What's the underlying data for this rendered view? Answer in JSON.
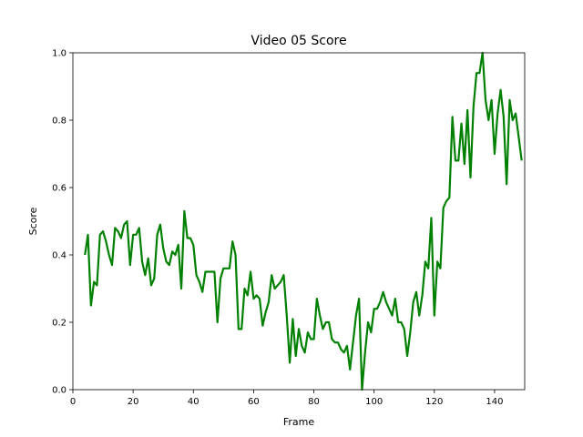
{
  "chart_data": {
    "type": "line",
    "title": "Video 05 Score",
    "xlabel": "Frame",
    "ylabel": "Score",
    "xlim": [
      0,
      150
    ],
    "ylim": [
      0.0,
      1.0
    ],
    "xticks": [
      0,
      20,
      40,
      60,
      80,
      100,
      120,
      140
    ],
    "yticks": [
      0.0,
      0.2,
      0.4,
      0.6,
      0.8,
      1.0
    ],
    "xtick_labels": [
      "0",
      "20",
      "40",
      "60",
      "80",
      "100",
      "120",
      "140"
    ],
    "ytick_labels": [
      "0.0",
      "0.2",
      "0.4",
      "0.6",
      "0.8",
      "1.0"
    ],
    "grid": false,
    "series": [
      {
        "color": "#008000",
        "x": [
          4,
          5,
          6,
          7,
          8,
          9,
          10,
          11,
          12,
          13,
          14,
          15,
          16,
          17,
          18,
          19,
          20,
          21,
          22,
          23,
          24,
          25,
          26,
          27,
          28,
          29,
          30,
          31,
          32,
          33,
          34,
          35,
          36,
          37,
          38,
          39,
          40,
          41,
          42,
          43,
          44,
          45,
          46,
          47,
          48,
          49,
          50,
          51,
          52,
          53,
          54,
          55,
          56,
          57,
          58,
          59,
          60,
          61,
          62,
          63,
          64,
          65,
          66,
          67,
          68,
          69,
          70,
          71,
          72,
          73,
          74,
          75,
          76,
          77,
          78,
          79,
          80,
          81,
          82,
          83,
          84,
          85,
          86,
          87,
          88,
          89,
          90,
          91,
          92,
          93,
          94,
          95,
          96,
          97,
          98,
          99,
          100,
          101,
          102,
          103,
          104,
          105,
          106,
          107,
          108,
          109,
          110,
          111,
          112,
          113,
          114,
          115,
          116,
          117,
          118,
          119,
          120,
          121,
          122,
          123,
          124,
          125,
          126,
          127,
          128,
          129,
          130,
          131,
          132,
          133,
          134,
          135,
          136,
          137,
          138,
          139,
          140,
          141,
          142,
          143,
          144,
          145,
          146,
          147,
          148,
          149
        ],
        "y": [
          0.4,
          0.46,
          0.25,
          0.32,
          0.31,
          0.46,
          0.47,
          0.44,
          0.4,
          0.37,
          0.48,
          0.47,
          0.45,
          0.49,
          0.5,
          0.37,
          0.46,
          0.46,
          0.48,
          0.38,
          0.34,
          0.39,
          0.31,
          0.33,
          0.46,
          0.49,
          0.42,
          0.38,
          0.37,
          0.41,
          0.4,
          0.43,
          0.3,
          0.53,
          0.45,
          0.45,
          0.43,
          0.34,
          0.32,
          0.29,
          0.35,
          0.35,
          0.35,
          0.35,
          0.2,
          0.33,
          0.36,
          0.36,
          0.36,
          0.44,
          0.4,
          0.18,
          0.18,
          0.3,
          0.28,
          0.35,
          0.27,
          0.28,
          0.27,
          0.19,
          0.23,
          0.26,
          0.34,
          0.3,
          0.31,
          0.32,
          0.34,
          0.22,
          0.08,
          0.21,
          0.1,
          0.18,
          0.13,
          0.11,
          0.17,
          0.15,
          0.15,
          0.27,
          0.22,
          0.18,
          0.2,
          0.2,
          0.15,
          0.14,
          0.14,
          0.12,
          0.11,
          0.13,
          0.06,
          0.14,
          0.22,
          0.27,
          0.0,
          0.11,
          0.2,
          0.17,
          0.24,
          0.24,
          0.26,
          0.29,
          0.26,
          0.24,
          0.22,
          0.27,
          0.2,
          0.2,
          0.18,
          0.1,
          0.17,
          0.26,
          0.29,
          0.22,
          0.28,
          0.38,
          0.36,
          0.51,
          0.22,
          0.38,
          0.36,
          0.54,
          0.56,
          0.57,
          0.81,
          0.68,
          0.68,
          0.79,
          0.67,
          0.83,
          0.63,
          0.84,
          0.94,
          0.94,
          1.0,
          0.86,
          0.8,
          0.86,
          0.7,
          0.82,
          0.89,
          0.81,
          0.61,
          0.86,
          0.8,
          0.82,
          0.75,
          0.68
        ]
      }
    ]
  }
}
